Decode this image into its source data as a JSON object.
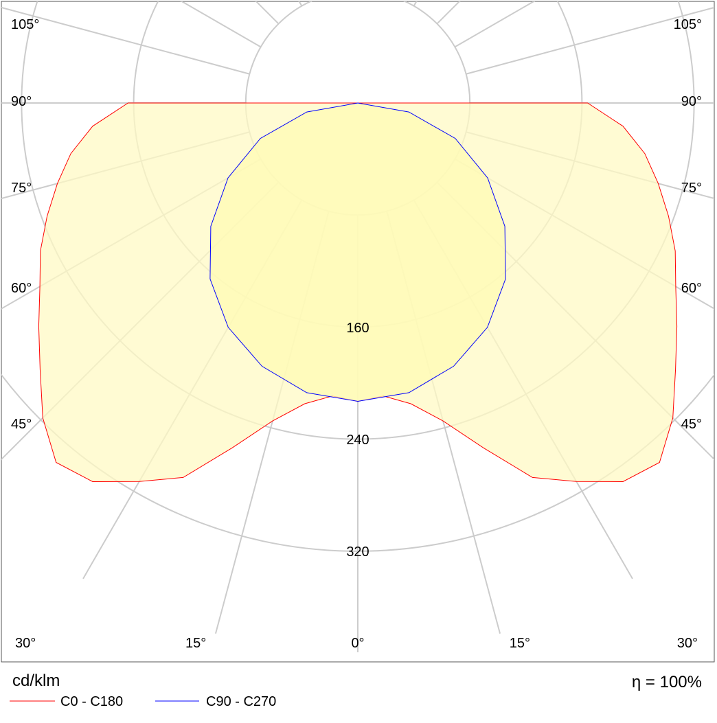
{
  "chart_data": {
    "type": "polar",
    "unit": "cd/klm",
    "efficiency_label": "η = 100%",
    "radial_ticks": [
      80,
      160,
      240,
      320
    ],
    "radial_tick_labels": [
      "160",
      "240",
      "320"
    ],
    "angle_labels": {
      "left": [
        "105°",
        "90°",
        "75°",
        "60°",
        "45°",
        "30°",
        "15°"
      ],
      "bottom": "0°",
      "right": [
        "105°",
        "90°",
        "75°",
        "60°",
        "45°",
        "30°",
        "15°"
      ]
    },
    "series": [
      {
        "name": "C0 - C180",
        "color": "#ff0000",
        "fill": "#fff9c4",
        "angles": [
          0,
          5,
          10,
          15,
          20,
          25,
          30,
          35,
          40,
          45,
          50,
          55,
          60,
          65,
          70,
          75,
          80,
          85,
          90
        ],
        "values": [
          213,
          210,
          218,
          235,
          262,
          295,
          312,
          330,
          335,
          318,
          296,
          278,
          262,
          250,
          236,
          222,
          208,
          190,
          164
        ]
      },
      {
        "name": "C90 - C270",
        "color": "#0000ff",
        "fill": "#fffbb4",
        "angles": [
          0,
          10,
          20,
          30,
          40,
          50,
          60,
          70,
          80,
          90
        ],
        "values": [
          213,
          210,
          200,
          185,
          164,
          137,
          107,
          74,
          37,
          0
        ]
      }
    ]
  },
  "legend": [
    {
      "label": "C0 - C180",
      "color": "#ff0000"
    },
    {
      "label": "C90 - C270",
      "color": "#0000ff"
    }
  ]
}
